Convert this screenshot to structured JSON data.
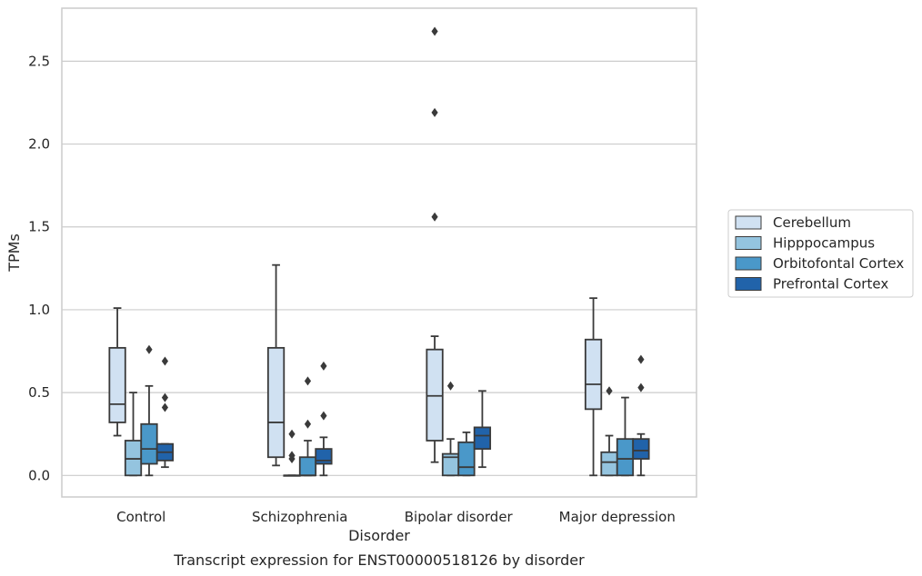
{
  "chart_data": {
    "type": "box",
    "caption": "Transcript expression for ENST00000518126 by disorder",
    "xlabel": "Disorder",
    "ylabel": "TPMs",
    "ylim": [
      -0.13,
      2.82
    ],
    "yticks": [
      "0.0",
      "0.5",
      "1.0",
      "1.5",
      "2.0",
      "2.5"
    ],
    "ytick_values": [
      0,
      0.5,
      1.0,
      1.5,
      2.0,
      2.5
    ],
    "grid": "horizontal",
    "legend_position": "right",
    "categories": [
      "Control",
      "Schizophrenia",
      "Bipolar disorder",
      "Major depression"
    ],
    "series": [
      {
        "name": "Cerebellum",
        "color": "#d0e1f2",
        "boxes": [
          {
            "whisker_low": 0.24,
            "q1": 0.32,
            "median": 0.43,
            "q3": 0.77,
            "whisker_high": 1.01,
            "outliers": []
          },
          {
            "whisker_low": 0.06,
            "q1": 0.11,
            "median": 0.32,
            "q3": 0.77,
            "whisker_high": 1.27,
            "outliers": []
          },
          {
            "whisker_low": 0.08,
            "q1": 0.21,
            "median": 0.48,
            "q3": 0.76,
            "whisker_high": 0.84,
            "outliers": [
              2.68,
              2.19,
              1.56
            ]
          },
          {
            "whisker_low": 0.0,
            "q1": 0.4,
            "median": 0.55,
            "q3": 0.82,
            "whisker_high": 1.07,
            "outliers": []
          }
        ]
      },
      {
        "name": "Hipppocampus",
        "color": "#94c4df",
        "boxes": [
          {
            "whisker_low": 0.0,
            "q1": 0.0,
            "median": 0.1,
            "q3": 0.21,
            "whisker_high": 0.5,
            "outliers": []
          },
          {
            "whisker_low": 0.0,
            "q1": 0.0,
            "median": 0.0,
            "q3": 0.0,
            "whisker_high": 0.0,
            "outliers": [
              0.25,
              0.12,
              0.1
            ]
          },
          {
            "whisker_low": 0.0,
            "q1": 0.0,
            "median": 0.11,
            "q3": 0.13,
            "whisker_high": 0.22,
            "outliers": [
              0.54
            ]
          },
          {
            "whisker_low": 0.0,
            "q1": 0.0,
            "median": 0.08,
            "q3": 0.14,
            "whisker_high": 0.24,
            "outliers": [
              0.51
            ]
          }
        ]
      },
      {
        "name": "Orbitofontal Cortex",
        "color": "#4a98c9",
        "boxes": [
          {
            "whisker_low": 0.0,
            "q1": 0.07,
            "median": 0.16,
            "q3": 0.31,
            "whisker_high": 0.54,
            "outliers": [
              0.76
            ]
          },
          {
            "whisker_low": 0.0,
            "q1": 0.0,
            "median": 0.0,
            "q3": 0.11,
            "whisker_high": 0.21,
            "outliers": [
              0.57,
              0.31
            ]
          },
          {
            "whisker_low": 0.0,
            "q1": 0.0,
            "median": 0.05,
            "q3": 0.2,
            "whisker_high": 0.26,
            "outliers": []
          },
          {
            "whisker_low": 0.0,
            "q1": 0.0,
            "median": 0.1,
            "q3": 0.22,
            "whisker_high": 0.47,
            "outliers": []
          }
        ]
      },
      {
        "name": "Prefrontal Cortex",
        "color": "#2163aa",
        "boxes": [
          {
            "whisker_low": 0.05,
            "q1": 0.09,
            "median": 0.14,
            "q3": 0.19,
            "whisker_high": 0.19,
            "outliers": [
              0.69,
              0.47,
              0.41
            ]
          },
          {
            "whisker_low": 0.0,
            "q1": 0.07,
            "median": 0.09,
            "q3": 0.16,
            "whisker_high": 0.23,
            "outliers": [
              0.66,
              0.36
            ]
          },
          {
            "whisker_low": 0.05,
            "q1": 0.16,
            "median": 0.24,
            "q3": 0.29,
            "whisker_high": 0.51,
            "outliers": []
          },
          {
            "whisker_low": 0.0,
            "q1": 0.1,
            "median": 0.15,
            "q3": 0.22,
            "whisker_high": 0.25,
            "outliers": [
              0.7,
              0.53
            ]
          }
        ]
      }
    ]
  }
}
